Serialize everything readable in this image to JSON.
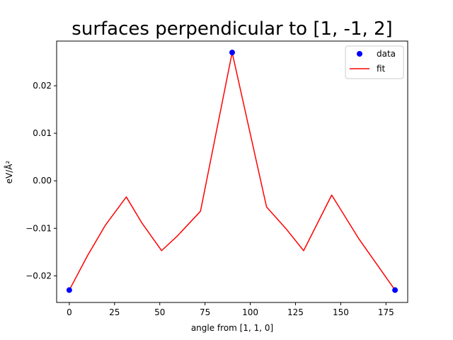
{
  "chart_data": {
    "type": "line",
    "title": "surfaces perpendicular to [1, -1, 2]",
    "xlabel": "angle from [1, 1, 0]",
    "ylabel": "eV/Å²",
    "xlim": [
      -7,
      187
    ],
    "ylim": [
      -0.0256,
      0.0294
    ],
    "xticks": [
      0,
      25,
      50,
      75,
      100,
      125,
      150,
      175
    ],
    "yticks": [
      -0.02,
      -0.01,
      0.0,
      0.01,
      0.02
    ],
    "ytick_labels": [
      "−0.02",
      "−0.01",
      "0.00",
      "0.01",
      "0.02"
    ],
    "grid": false,
    "legend_position": "top-right",
    "series": [
      {
        "name": "data",
        "style": "scatter",
        "color": "#0000ff",
        "x": [
          0,
          90,
          180
        ],
        "y": [
          -0.023,
          0.027,
          -0.023
        ]
      },
      {
        "name": "fit",
        "style": "line",
        "color": "#ff0000",
        "x": [
          0,
          10,
          20,
          31.5,
          40,
          51,
          60,
          72.5,
          90,
          109,
          120,
          129.5,
          145,
          160,
          180
        ],
        "y": [
          -0.023,
          -0.0158,
          -0.0093,
          -0.0034,
          -0.0088,
          -0.0147,
          -0.0115,
          -0.0064,
          0.027,
          -0.0055,
          -0.0102,
          -0.0147,
          -0.003,
          -0.0122,
          -0.023
        ]
      }
    ]
  }
}
